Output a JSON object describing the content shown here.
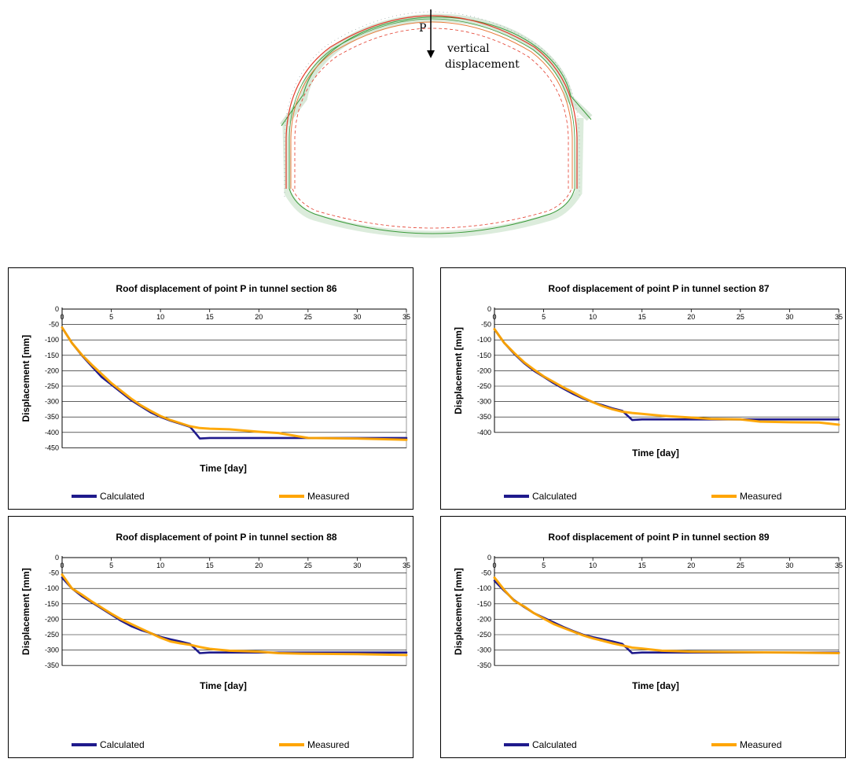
{
  "figure": {
    "point_label": "P",
    "annotation_line1": "vertical",
    "annotation_line2": "displacement"
  },
  "colors": {
    "calculated": "#1f1a8c",
    "measured": "#ffa500"
  },
  "chart_data": [
    {
      "type": "line",
      "title": "Roof displacement of point P in tunnel section 86",
      "xlabel": "Time [day]",
      "ylabel": "Displacement [mm]",
      "xlim": [
        0,
        35
      ],
      "ylim": [
        -450,
        0
      ],
      "xticks": [
        0,
        5,
        10,
        15,
        20,
        25,
        30,
        35
      ],
      "yticks": [
        0,
        -50,
        -100,
        -150,
        -200,
        -250,
        -300,
        -350,
        -400,
        -450
      ],
      "grid": "horizontal",
      "legend_position": "bottom",
      "series": [
        {
          "name": "Calculated",
          "x": [
            0,
            1,
            2,
            3,
            4,
            5,
            6,
            7,
            8,
            9,
            10,
            11,
            12,
            13,
            13.5,
            14,
            15,
            20,
            25,
            30,
            35
          ],
          "y": [
            -60,
            -110,
            -150,
            -185,
            -220,
            -245,
            -270,
            -295,
            -315,
            -335,
            -350,
            -362,
            -372,
            -382,
            -400,
            -420,
            -418,
            -418,
            -418,
            -418,
            -418
          ]
        },
        {
          "name": "Measured",
          "x": [
            0,
            1,
            2,
            3,
            4,
            5,
            6,
            7,
            8,
            9,
            10,
            11,
            12,
            13,
            14,
            15,
            17,
            20,
            22,
            25,
            30,
            35
          ],
          "y": [
            -60,
            -110,
            -148,
            -180,
            -210,
            -240,
            -265,
            -290,
            -312,
            -330,
            -347,
            -360,
            -370,
            -380,
            -386,
            -388,
            -390,
            -398,
            -402,
            -418,
            -420,
            -424
          ]
        }
      ]
    },
    {
      "type": "line",
      "title": "Roof displacement of point P in tunnel section 87",
      "xlabel": "Time [day]",
      "ylabel": "Displacement [mm]",
      "xlim": [
        0,
        35
      ],
      "ylim": [
        -400,
        0
      ],
      "xticks": [
        0,
        5,
        10,
        15,
        20,
        25,
        30,
        35
      ],
      "yticks": [
        0,
        -50,
        -100,
        -150,
        -200,
        -250,
        -300,
        -350,
        -400
      ],
      "grid": "horizontal",
      "legend_position": "bottom",
      "series": [
        {
          "name": "Calculated",
          "x": [
            0,
            1,
            2,
            3,
            4,
            5,
            6,
            7,
            8,
            9,
            10,
            11,
            12,
            13,
            13.5,
            14,
            15,
            20,
            25,
            30,
            35
          ],
          "y": [
            -65,
            -110,
            -145,
            -175,
            -200,
            -220,
            -240,
            -258,
            -275,
            -290,
            -302,
            -312,
            -322,
            -330,
            -345,
            -360,
            -358,
            -358,
            -358,
            -358,
            -358
          ]
        },
        {
          "name": "Measured",
          "x": [
            0,
            1,
            2,
            3,
            4,
            5,
            6,
            7,
            8,
            9,
            10,
            11,
            12,
            13,
            14,
            15,
            17,
            20,
            22,
            25,
            27,
            30,
            33,
            35
          ],
          "y": [
            -65,
            -110,
            -142,
            -172,
            -196,
            -218,
            -236,
            -254,
            -270,
            -287,
            -302,
            -315,
            -325,
            -333,
            -337,
            -340,
            -346,
            -352,
            -356,
            -358,
            -365,
            -367,
            -368,
            -375
          ]
        }
      ]
    },
    {
      "type": "line",
      "title": "Roof displacement of point P in tunnel section 88",
      "xlabel": "Time [day]",
      "ylabel": "Displacement [mm]",
      "xlim": [
        0,
        35
      ],
      "ylim": [
        -350,
        0
      ],
      "xticks": [
        0,
        5,
        10,
        15,
        20,
        25,
        30,
        35
      ],
      "yticks": [
        0,
        -50,
        -100,
        -150,
        -200,
        -250,
        -300,
        -350
      ],
      "grid": "horizontal",
      "legend_position": "bottom",
      "series": [
        {
          "name": "Calculated",
          "x": [
            0,
            1,
            2,
            3,
            4,
            5,
            6,
            7,
            8,
            9,
            10,
            11,
            12,
            13,
            13.5,
            14,
            15,
            20,
            25,
            30,
            35
          ],
          "y": [
            -65,
            -100,
            -125,
            -145,
            -165,
            -185,
            -205,
            -222,
            -235,
            -245,
            -257,
            -265,
            -272,
            -280,
            -295,
            -310,
            -308,
            -308,
            -308,
            -308,
            -308
          ]
        },
        {
          "name": "Measured",
          "x": [
            0,
            1,
            2,
            3,
            4,
            5,
            6,
            7,
            8,
            9,
            10,
            11,
            12,
            13,
            14,
            15,
            17,
            20,
            22,
            25,
            30,
            35
          ],
          "y": [
            -55,
            -100,
            -120,
            -142,
            -162,
            -182,
            -200,
            -215,
            -230,
            -245,
            -260,
            -272,
            -278,
            -283,
            -290,
            -296,
            -302,
            -305,
            -310,
            -312,
            -313,
            -316
          ]
        }
      ]
    },
    {
      "type": "line",
      "title": "Roof displacement of point P in tunnel section 89",
      "xlabel": "Time [day]",
      "ylabel": "Displacement [mm]",
      "xlim": [
        0,
        35
      ],
      "ylim": [
        -350,
        0
      ],
      "xticks": [
        0,
        5,
        10,
        15,
        20,
        25,
        30,
        35
      ],
      "yticks": [
        0,
        -50,
        -100,
        -150,
        -200,
        -250,
        -300,
        -350
      ],
      "grid": "horizontal",
      "legend_position": "bottom",
      "series": [
        {
          "name": "Calculated",
          "x": [
            0,
            1,
            2,
            3,
            4,
            5,
            6,
            7,
            8,
            9,
            10,
            11,
            12,
            13,
            13.5,
            14,
            15,
            20,
            25,
            30,
            35
          ],
          "y": [
            -75,
            -108,
            -138,
            -160,
            -180,
            -195,
            -210,
            -225,
            -238,
            -250,
            -258,
            -265,
            -272,
            -280,
            -295,
            -310,
            -308,
            -308,
            -308,
            -308,
            -308
          ]
        },
        {
          "name": "Measured",
          "x": [
            0,
            0.5,
            1,
            2,
            3,
            4,
            5,
            6,
            7,
            8,
            9,
            10,
            11,
            12,
            13,
            14,
            15,
            17,
            20,
            25,
            30,
            35
          ],
          "y": [
            -65,
            -85,
            -105,
            -140,
            -158,
            -180,
            -198,
            -215,
            -228,
            -240,
            -252,
            -262,
            -270,
            -278,
            -285,
            -292,
            -295,
            -302,
            -305,
            -307,
            -308,
            -310
          ]
        }
      ]
    }
  ]
}
